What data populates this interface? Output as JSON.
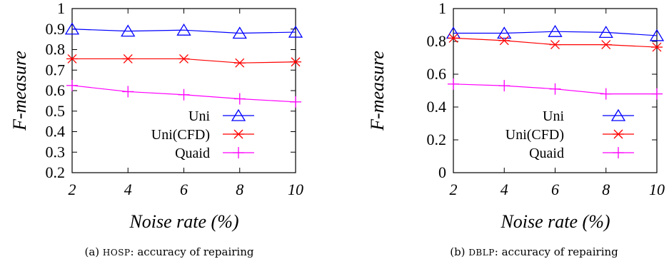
{
  "chart_data": [
    {
      "type": "line",
      "caption_label": "(a)",
      "caption_dataset": "HOSP",
      "caption_text": ": accuracy of repairing",
      "xlabel": "Noise rate (%)",
      "ylabel": "F-measure",
      "x": [
        2,
        4,
        6,
        8,
        10
      ],
      "xlim": [
        2,
        10
      ],
      "ylim": [
        0.2,
        1
      ],
      "yticks": [
        0.2,
        0.3,
        0.4,
        0.5,
        0.6,
        0.7,
        0.8,
        0.9,
        1
      ],
      "ytick_labels": [
        "0.2",
        "0.3",
        "0.4",
        "0.5",
        "0.6",
        "0.7",
        "0.8",
        "0.9",
        "1"
      ],
      "xtick_labels": [
        "2",
        "4",
        "6",
        "8",
        "10"
      ],
      "grid": false,
      "legend_position": "bottom-right",
      "series": [
        {
          "name": "Uni",
          "color": "#0000ff",
          "marker": "triangle",
          "values": [
            0.9,
            0.89,
            0.895,
            0.88,
            0.885
          ]
        },
        {
          "name": "Uni(CFD)",
          "color": "#ff0000",
          "marker": "asterisk",
          "values": [
            0.755,
            0.755,
            0.755,
            0.735,
            0.74
          ]
        },
        {
          "name": "Quaid",
          "color": "#ff00ff",
          "marker": "plus",
          "values": [
            0.625,
            0.595,
            0.58,
            0.56,
            0.545
          ]
        }
      ]
    },
    {
      "type": "line",
      "caption_label": "(b)",
      "caption_dataset": "DBLP",
      "caption_text": ": accuracy of repairing",
      "xlabel": "Noise rate (%)",
      "ylabel": "F-measure",
      "x": [
        2,
        4,
        6,
        8,
        10
      ],
      "xlim": [
        2,
        10
      ],
      "ylim": [
        0,
        1
      ],
      "yticks": [
        0,
        0.2,
        0.4,
        0.6,
        0.8,
        1
      ],
      "ytick_labels": [
        "0",
        "0.2",
        "0.4",
        "0.6",
        "0.8",
        "1"
      ],
      "xtick_labels": [
        "2",
        "4",
        "6",
        "8",
        "10"
      ],
      "grid": false,
      "legend_position": "bottom-right",
      "series": [
        {
          "name": "Uni",
          "color": "#0000ff",
          "marker": "triangle",
          "values": [
            0.85,
            0.85,
            0.86,
            0.855,
            0.835
          ]
        },
        {
          "name": "Uni(CFD)",
          "color": "#ff0000",
          "marker": "asterisk",
          "values": [
            0.82,
            0.805,
            0.78,
            0.78,
            0.765
          ]
        },
        {
          "name": "Quaid",
          "color": "#ff00ff",
          "marker": "plus",
          "values": [
            0.54,
            0.53,
            0.51,
            0.48,
            0.48
          ]
        }
      ]
    }
  ]
}
